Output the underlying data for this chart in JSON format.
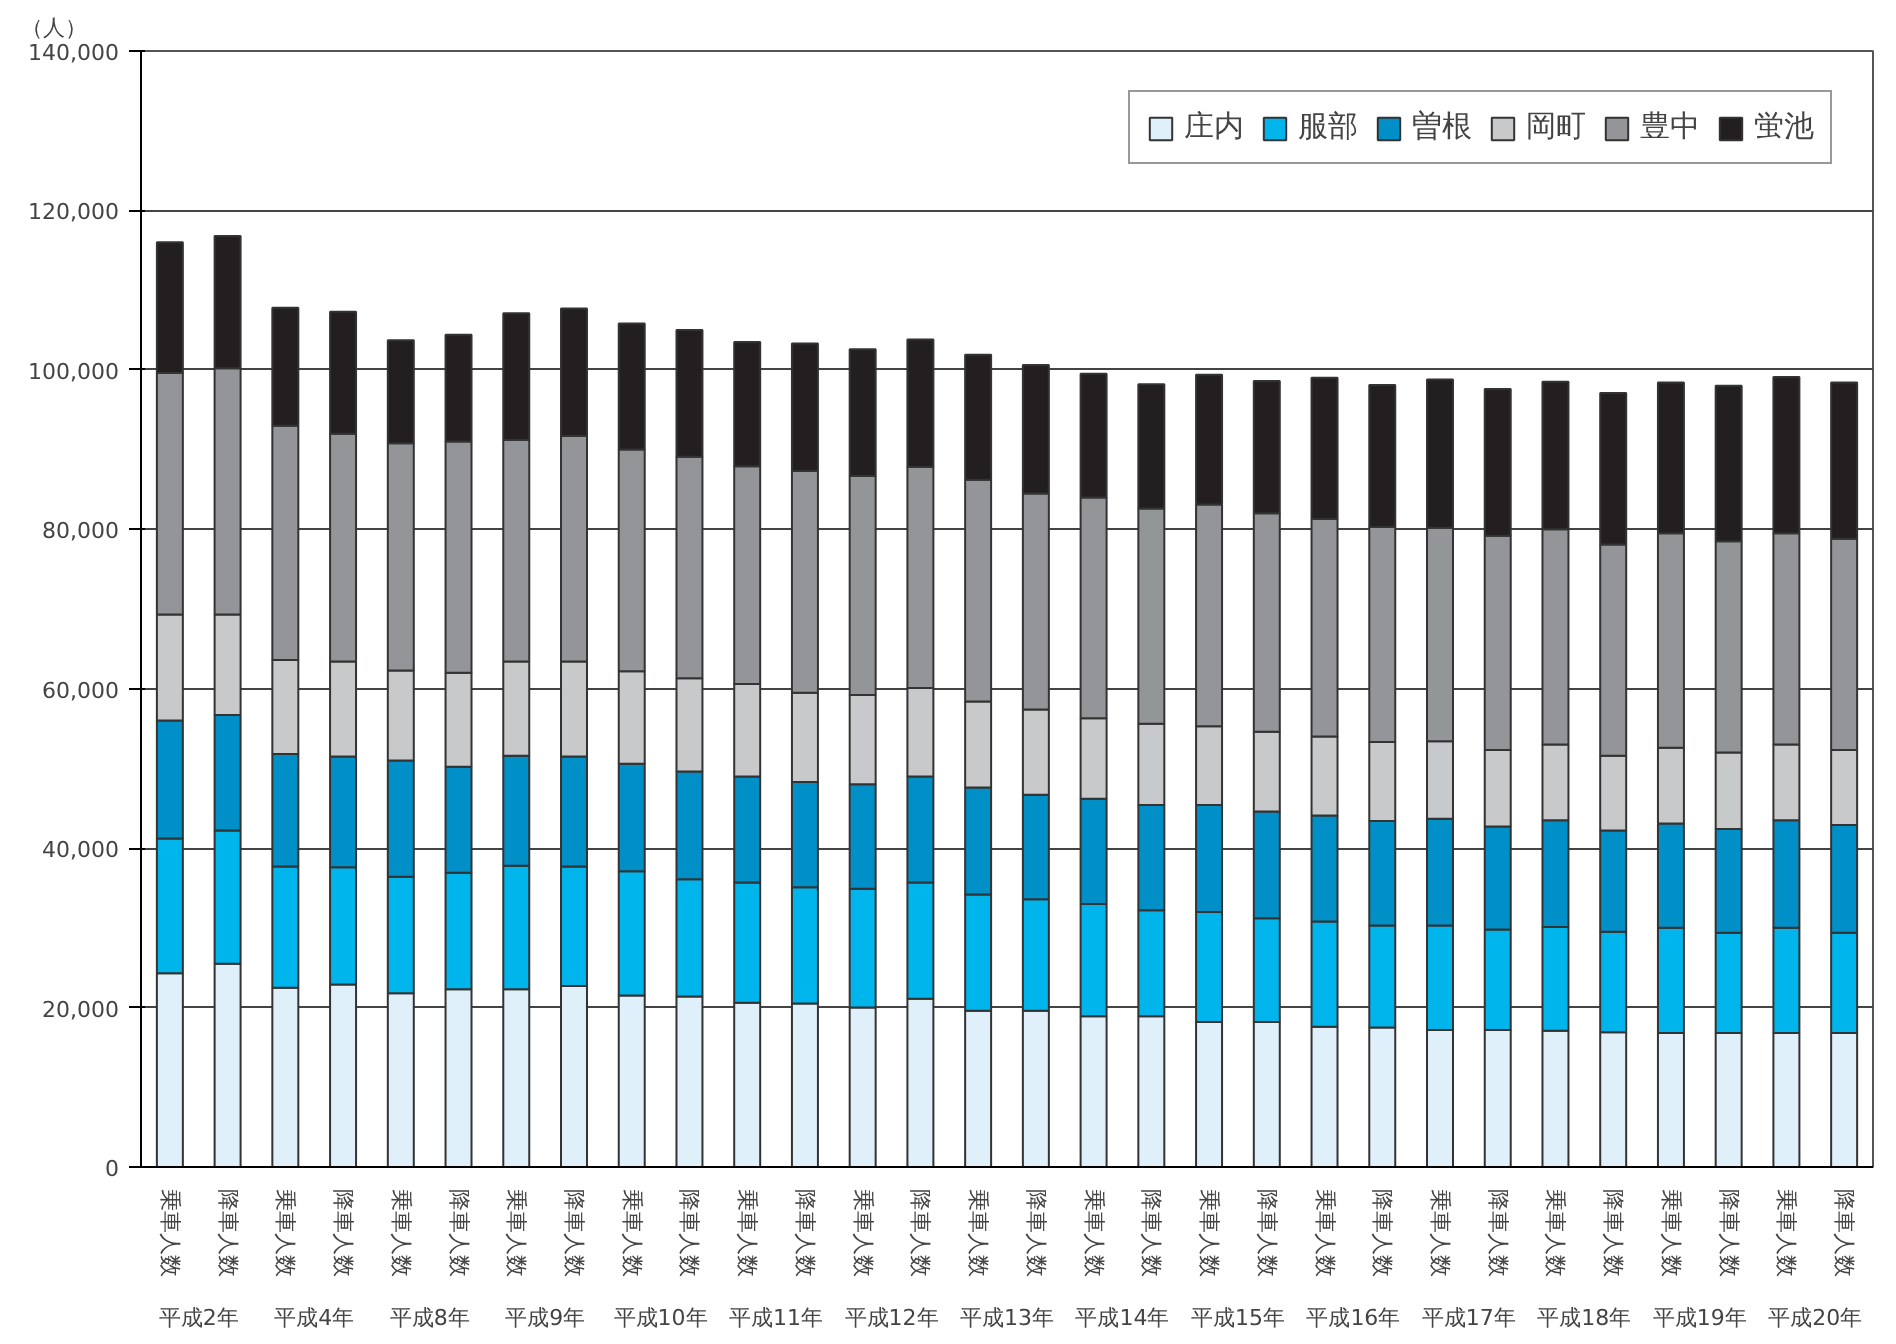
{
  "chart_data": {
    "type": "bar",
    "stacked": true,
    "ylabel": "（人）",
    "categories": [
      "乗車人数",
      "降車人数",
      "乗車人数",
      "降車人数",
      "乗車人数",
      "降車人数",
      "乗車人数",
      "降車人数",
      "乗車人数",
      "降車人数",
      "乗車人数",
      "降車人数",
      "乗車人数",
      "降車人数",
      "乗車人数",
      "降車人数",
      "乗車人数",
      "降車人数",
      "乗車人数",
      "降車人数",
      "乗車人数",
      "降車人数",
      "乗車人数",
      "降車人数",
      "乗車人数",
      "降車人数",
      "乗車人数",
      "降車人数",
      "乗車人数",
      "降車人数"
    ],
    "annotations": [
      "平成2年",
      "平成4年",
      "平成8年",
      "平成9年",
      "平成10年",
      "平成11年",
      "平成12年",
      "平成13年",
      "平成14年",
      "平成15年",
      "平成16年",
      "平成17年",
      "平成18年",
      "平成19年",
      "平成20年"
    ],
    "series": [
      {
        "name": "庄内",
        "color": "#e0f0fa",
        "values": [
          24300,
          25500,
          22500,
          22900,
          21800,
          22300,
          22300,
          22700,
          21500,
          21400,
          20600,
          20500,
          20000,
          21100,
          19600,
          19600,
          18900,
          18900,
          18200,
          18200,
          17600,
          17500,
          17200,
          17200,
          17100,
          16900,
          16800,
          16800,
          16800,
          16800
        ]
      },
      {
        "name": "服部",
        "color": "#00b4ec",
        "values": [
          16900,
          16700,
          15200,
          14700,
          14600,
          14600,
          15500,
          15000,
          15600,
          14700,
          15100,
          14600,
          14900,
          14600,
          14600,
          14000,
          14100,
          13300,
          13800,
          13000,
          13200,
          12800,
          13100,
          12600,
          13000,
          12600,
          13200,
          12600,
          13200,
          12600
        ]
      },
      {
        "name": "曽根",
        "color": "#008fc6",
        "values": [
          14800,
          14500,
          14100,
          13900,
          14600,
          13300,
          13800,
          13800,
          13500,
          13500,
          13300,
          13200,
          13100,
          13300,
          13400,
          13100,
          13200,
          13200,
          13400,
          13400,
          13300,
          13100,
          13400,
          12900,
          13400,
          12700,
          13100,
          13000,
          13500,
          13500
        ]
      },
      {
        "name": "岡町",
        "color": "#c8c9cb",
        "values": [
          13300,
          12600,
          11800,
          11900,
          11300,
          11800,
          11800,
          11900,
          11600,
          11700,
          11600,
          11200,
          11200,
          11100,
          10800,
          10700,
          10100,
          10200,
          9900,
          10000,
          9900,
          9900,
          9700,
          9600,
          9500,
          9400,
          9500,
          9600,
          9500,
          9400
        ]
      },
      {
        "name": "豊中",
        "color": "#939598",
        "values": [
          30300,
          30900,
          29400,
          28600,
          28500,
          29000,
          27800,
          28300,
          27800,
          27800,
          27300,
          27800,
          27500,
          27700,
          27800,
          27100,
          27700,
          27000,
          27800,
          27400,
          27300,
          27000,
          26800,
          26900,
          27000,
          26500,
          26900,
          26500,
          26500,
          26500
        ]
      },
      {
        "name": "蛍池",
        "color": "#231f20",
        "values": [
          16400,
          16600,
          14800,
          15300,
          12900,
          13400,
          15900,
          16000,
          15800,
          15900,
          15600,
          16000,
          15900,
          16000,
          15700,
          16100,
          15500,
          15600,
          16300,
          16600,
          17700,
          17800,
          18600,
          18400,
          18500,
          19000,
          18900,
          19500,
          19600,
          19600
        ]
      }
    ],
    "ylim": [
      0,
      140000
    ],
    "yticks": [
      0,
      {
        "value": 20000,
        "label": "20,000"
      },
      {
        "value": 40000,
        "label": "40,000"
      },
      {
        "value": 60000,
        "label": "60,000"
      },
      {
        "value": 80000,
        "label": "80,000"
      },
      {
        "value": 100000,
        "label": "100,000"
      },
      {
        "value": 120000,
        "label": "120,000"
      },
      {
        "value": 140000,
        "label": "140,000"
      }
    ],
    "grid": "y",
    "legend": "top right"
  }
}
